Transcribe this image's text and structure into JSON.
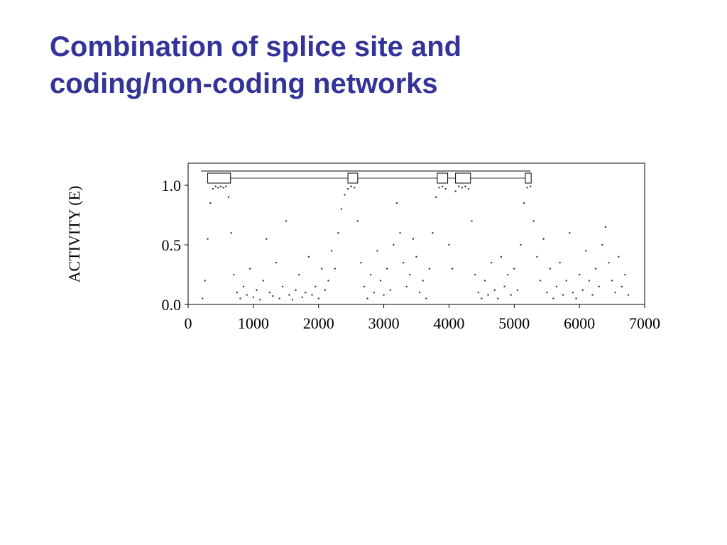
{
  "title_lines": [
    "Combination of splice site and",
    "coding/non-coding networks"
  ],
  "chart_data": {
    "type": "scatter",
    "ylabel": "ACTIVITY (E)",
    "xlim": [
      0,
      7000
    ],
    "ylim": [
      0,
      1.185
    ],
    "xticks": [
      0,
      1000,
      2000,
      3000,
      4000,
      5000,
      6000,
      7000
    ],
    "yticks": [
      {
        "value": 0,
        "label": "0.0"
      },
      {
        "value": 0.5,
        "label": "0.5"
      },
      {
        "value": 1,
        "label": "1.0"
      }
    ],
    "color": "#333333",
    "gene_span": [
      200,
      5250
    ],
    "exons": [
      [
        300,
        650
      ],
      [
        2450,
        2600
      ],
      [
        3820,
        3980
      ],
      [
        4100,
        4330
      ],
      [
        5170,
        5260
      ]
    ],
    "points": [
      [
        220,
        0.05
      ],
      [
        260,
        0.2
      ],
      [
        300,
        0.55
      ],
      [
        340,
        0.85
      ],
      [
        380,
        0.97
      ],
      [
        420,
        0.99
      ],
      [
        460,
        0.98
      ],
      [
        500,
        0.99
      ],
      [
        540,
        0.98
      ],
      [
        580,
        0.99
      ],
      [
        620,
        0.9
      ],
      [
        660,
        0.6
      ],
      [
        700,
        0.25
      ],
      [
        750,
        0.1
      ],
      [
        800,
        0.05
      ],
      [
        850,
        0.15
      ],
      [
        900,
        0.08
      ],
      [
        950,
        0.3
      ],
      [
        1000,
        0.06
      ],
      [
        1050,
        0.12
      ],
      [
        1100,
        0.04
      ],
      [
        1150,
        0.2
      ],
      [
        1200,
        0.55
      ],
      [
        1250,
        0.1
      ],
      [
        1300,
        0.07
      ],
      [
        1350,
        0.35
      ],
      [
        1400,
        0.05
      ],
      [
        1450,
        0.15
      ],
      [
        1500,
        0.7
      ],
      [
        1550,
        0.08
      ],
      [
        1600,
        0.04
      ],
      [
        1650,
        0.12
      ],
      [
        1700,
        0.25
      ],
      [
        1750,
        0.06
      ],
      [
        1800,
        0.1
      ],
      [
        1850,
        0.4
      ],
      [
        1900,
        0.08
      ],
      [
        1950,
        0.15
      ],
      [
        2000,
        0.05
      ],
      [
        2050,
        0.3
      ],
      [
        2100,
        0.12
      ],
      [
        2150,
        0.2
      ],
      [
        2200,
        0.45
      ],
      [
        2250,
        0.3
      ],
      [
        2300,
        0.6
      ],
      [
        2350,
        0.8
      ],
      [
        2400,
        0.92
      ],
      [
        2450,
        0.97
      ],
      [
        2500,
        0.99
      ],
      [
        2550,
        0.98
      ],
      [
        2600,
        0.7
      ],
      [
        2650,
        0.35
      ],
      [
        2700,
        0.15
      ],
      [
        2750,
        0.05
      ],
      [
        2800,
        0.25
      ],
      [
        2850,
        0.1
      ],
      [
        2900,
        0.45
      ],
      [
        2950,
        0.2
      ],
      [
        3000,
        0.08
      ],
      [
        3050,
        0.3
      ],
      [
        3100,
        0.12
      ],
      [
        3150,
        0.5
      ],
      [
        3200,
        0.85
      ],
      [
        3250,
        0.6
      ],
      [
        3300,
        0.35
      ],
      [
        3350,
        0.15
      ],
      [
        3400,
        0.25
      ],
      [
        3450,
        0.55
      ],
      [
        3500,
        0.4
      ],
      [
        3550,
        0.1
      ],
      [
        3600,
        0.2
      ],
      [
        3650,
        0.05
      ],
      [
        3700,
        0.3
      ],
      [
        3750,
        0.6
      ],
      [
        3800,
        0.9
      ],
      [
        3850,
        0.98
      ],
      [
        3900,
        0.99
      ],
      [
        3950,
        0.97
      ],
      [
        4000,
        0.5
      ],
      [
        4050,
        0.3
      ],
      [
        4100,
        0.95
      ],
      [
        4150,
        0.99
      ],
      [
        4200,
        0.98
      ],
      [
        4250,
        0.99
      ],
      [
        4300,
        0.97
      ],
      [
        4350,
        0.7
      ],
      [
        4400,
        0.25
      ],
      [
        4450,
        0.1
      ],
      [
        4500,
        0.05
      ],
      [
        4550,
        0.2
      ],
      [
        4600,
        0.08
      ],
      [
        4650,
        0.35
      ],
      [
        4700,
        0.12
      ],
      [
        4750,
        0.05
      ],
      [
        4800,
        0.4
      ],
      [
        4850,
        0.15
      ],
      [
        4900,
        0.25
      ],
      [
        4950,
        0.08
      ],
      [
        5000,
        0.3
      ],
      [
        5050,
        0.12
      ],
      [
        5100,
        0.5
      ],
      [
        5150,
        0.85
      ],
      [
        5200,
        0.98
      ],
      [
        5250,
        0.99
      ],
      [
        5300,
        0.7
      ],
      [
        5350,
        0.4
      ],
      [
        5400,
        0.2
      ],
      [
        5450,
        0.55
      ],
      [
        5500,
        0.1
      ],
      [
        5550,
        0.3
      ],
      [
        5600,
        0.05
      ],
      [
        5650,
        0.15
      ],
      [
        5700,
        0.35
      ],
      [
        5750,
        0.08
      ],
      [
        5800,
        0.2
      ],
      [
        5850,
        0.6
      ],
      [
        5900,
        0.1
      ],
      [
        5950,
        0.05
      ],
      [
        6000,
        0.25
      ],
      [
        6050,
        0.12
      ],
      [
        6100,
        0.45
      ],
      [
        6150,
        0.2
      ],
      [
        6200,
        0.08
      ],
      [
        6250,
        0.3
      ],
      [
        6300,
        0.15
      ],
      [
        6350,
        0.5
      ],
      [
        6400,
        0.65
      ],
      [
        6450,
        0.35
      ],
      [
        6500,
        0.2
      ],
      [
        6550,
        0.1
      ],
      [
        6600,
        0.4
      ],
      [
        6650,
        0.15
      ],
      [
        6700,
        0.25
      ],
      [
        6750,
        0.08
      ]
    ]
  }
}
